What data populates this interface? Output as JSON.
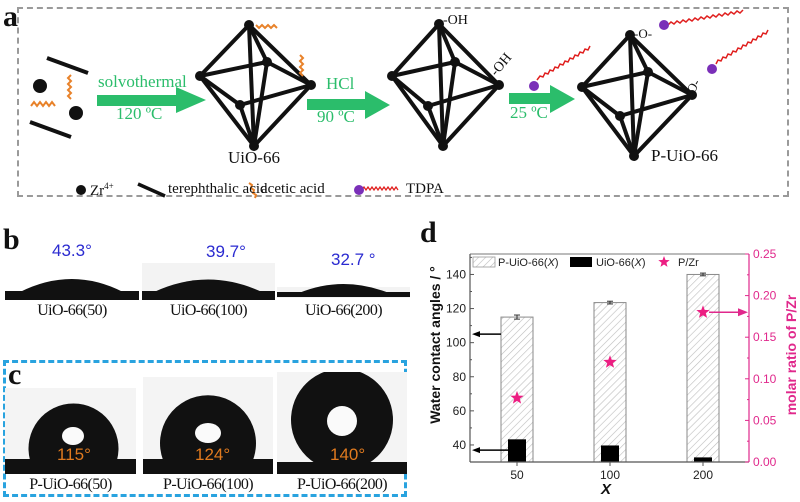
{
  "panels": {
    "a": {
      "letter": "a",
      "steps": [
        {
          "top_label": "solvothermal",
          "bottom_label": "120 ºC"
        },
        {
          "top_label": "HCl",
          "bottom_label": "90 ºC"
        },
        {
          "top_label": "",
          "bottom_label": "25 ºC"
        }
      ],
      "structures": {
        "uio66": "UiO-66",
        "p_uio66": "P-UiO-66",
        "hydroxyl_1": "-OH",
        "hydroxyl_2": "-OH",
        "oxy_1": "-O-",
        "oxy_2": "-O-"
      },
      "legend": [
        {
          "icon": "zr-sphere-icon",
          "label": "Zr",
          "superscript": "4+"
        },
        {
          "icon": "terephthalic-acid-line-icon",
          "label": "terephthalic acid"
        },
        {
          "icon": "acetic-acid-squiggle-icon",
          "label": "acetic acid"
        },
        {
          "icon": "tdpa-chain-icon",
          "label": "TDPA"
        }
      ],
      "colors": {
        "arrow": "#2bbd6b",
        "acetic_acid": "#e8822a",
        "tdpa_chain": "#e0201f",
        "tdpa_head": "#7a2fb8",
        "border": "#9a9a9a"
      }
    },
    "b": {
      "letter": "b",
      "droplets": [
        {
          "caption": "UiO-66(50)",
          "angle": "43.3°"
        },
        {
          "caption": "UiO-66(100)",
          "angle": "39.7°"
        },
        {
          "caption": "UiO-66(200)",
          "angle": "32.7 °"
        }
      ],
      "angle_color": "#2a2ad0"
    },
    "c": {
      "letter": "c",
      "droplets": [
        {
          "caption": "P-UiO-66(50)",
          "angle": "115°"
        },
        {
          "caption": "P-UiO-66(100)",
          "angle": "124°"
        },
        {
          "caption": "P-UiO-66(200)",
          "angle": "140°"
        }
      ],
      "angle_color": "#e07a1f",
      "border_color": "#29a3df"
    },
    "d": {
      "letter": "d"
    }
  },
  "chart_data": {
    "type": "bar",
    "title": "",
    "xlabel": "X",
    "ylabel": "Water contact angles / °",
    "y2label": "molar ratio of P/Zr",
    "categories": [
      "50",
      "100",
      "200"
    ],
    "ylim": [
      30,
      152
    ],
    "y2lim": [
      0.0,
      0.25
    ],
    "yticks": [
      "40",
      "60",
      "80",
      "100",
      "120",
      "140"
    ],
    "y2ticks": [
      "0.00",
      "0.05",
      "0.10",
      "0.15",
      "0.20",
      "0.25"
    ],
    "series": [
      {
        "name": "P-UiO-66(X)",
        "axis": "left",
        "style": "hatched",
        "values": [
          115,
          123.5,
          140
        ],
        "errors": [
          1.2,
          0.8,
          0.8
        ]
      },
      {
        "name": "UiO-66(X)",
        "axis": "left",
        "style": "solid-black",
        "values": [
          43.3,
          39.7,
          32.7
        ]
      },
      {
        "name": "P/Zr",
        "axis": "right",
        "style": "star",
        "color": "#ec1e82",
        "values": [
          0.077,
          0.12,
          0.18
        ]
      }
    ],
    "legend": [
      {
        "label": "P-UiO-66(",
        "italic": "X",
        "suffix": ")"
      },
      {
        "label": "UiO-66(",
        "italic": "X",
        "suffix": ")"
      },
      {
        "label": "P/Zr"
      }
    ],
    "legend_position": "top-left",
    "annotations": [
      "arrow to left axis from P-UiO-66(50) bar",
      "arrow to left axis from UiO-66(50) bar",
      "arrow to right axis from P/Zr star at 200"
    ],
    "colors": {
      "right_axis": "#e0288c",
      "star": "#ec1e82"
    }
  }
}
